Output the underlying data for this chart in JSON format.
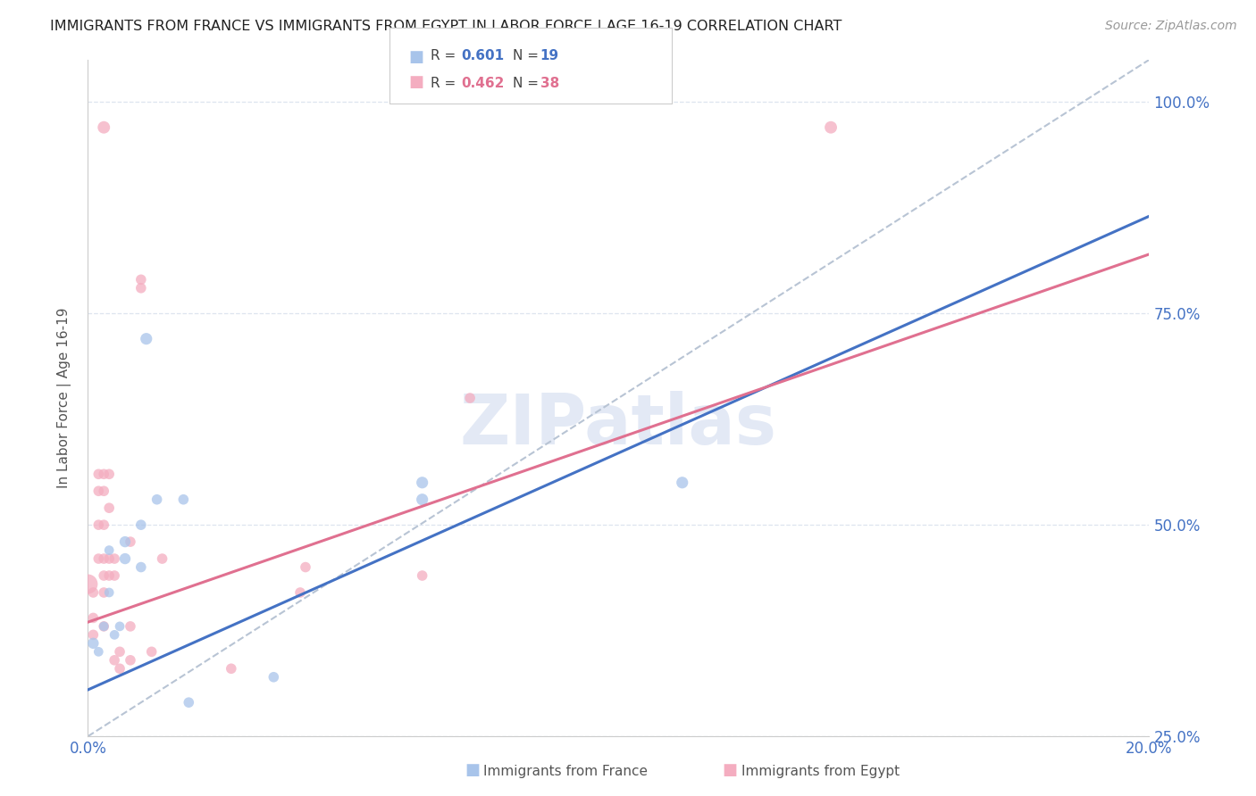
{
  "title": "IMMIGRANTS FROM FRANCE VS IMMIGRANTS FROM EGYPT IN LABOR FORCE | AGE 16-19 CORRELATION CHART",
  "source": "Source: ZipAtlas.com",
  "ylabel": "In Labor Force | Age 16-19",
  "watermark": "ZIPatlas",
  "xlim": [
    0.0,
    0.2
  ],
  "ylim": [
    0.25,
    1.05
  ],
  "yticks": [
    0.25,
    0.5,
    0.75,
    1.0
  ],
  "ytick_labels": [
    "25.0%",
    "50.0%",
    "75.0%",
    "100.0%"
  ],
  "xticks": [
    0.0,
    0.05,
    0.1,
    0.15,
    0.2
  ],
  "xtick_labels": [
    "0.0%",
    "",
    "",
    "",
    "20.0%"
  ],
  "france_color": "#a8c4ea",
  "egypt_color": "#f4adc0",
  "france_line_color": "#4472c4",
  "egypt_line_color": "#e07090",
  "diagonal_color": "#b8c4d4",
  "grid_color": "#dde4ef",
  "title_color": "#222222",
  "tick_color": "#4472c4",
  "background_color": "#ffffff",
  "france_line": [
    0.0,
    0.305,
    0.2,
    0.865
  ],
  "egypt_line": [
    0.0,
    0.385,
    0.2,
    0.82
  ],
  "france_scatter": [
    [
      0.001,
      0.36
    ],
    [
      0.002,
      0.35
    ],
    [
      0.003,
      0.38
    ],
    [
      0.004,
      0.42
    ],
    [
      0.004,
      0.47
    ],
    [
      0.005,
      0.37
    ],
    [
      0.006,
      0.38
    ],
    [
      0.007,
      0.46
    ],
    [
      0.007,
      0.48
    ],
    [
      0.01,
      0.45
    ],
    [
      0.01,
      0.5
    ],
    [
      0.011,
      0.72
    ],
    [
      0.013,
      0.53
    ],
    [
      0.018,
      0.53
    ],
    [
      0.019,
      0.29
    ],
    [
      0.035,
      0.32
    ],
    [
      0.063,
      0.55
    ],
    [
      0.063,
      0.53
    ],
    [
      0.112,
      0.55
    ]
  ],
  "egypt_scatter": [
    [
      0.0,
      0.43
    ],
    [
      0.001,
      0.42
    ],
    [
      0.001,
      0.39
    ],
    [
      0.001,
      0.37
    ],
    [
      0.002,
      0.56
    ],
    [
      0.002,
      0.54
    ],
    [
      0.002,
      0.5
    ],
    [
      0.002,
      0.46
    ],
    [
      0.003,
      0.56
    ],
    [
      0.003,
      0.54
    ],
    [
      0.003,
      0.5
    ],
    [
      0.003,
      0.46
    ],
    [
      0.003,
      0.44
    ],
    [
      0.003,
      0.42
    ],
    [
      0.003,
      0.38
    ],
    [
      0.004,
      0.56
    ],
    [
      0.004,
      0.52
    ],
    [
      0.004,
      0.46
    ],
    [
      0.004,
      0.44
    ],
    [
      0.005,
      0.46
    ],
    [
      0.005,
      0.44
    ],
    [
      0.005,
      0.34
    ],
    [
      0.006,
      0.35
    ],
    [
      0.006,
      0.33
    ],
    [
      0.008,
      0.48
    ],
    [
      0.008,
      0.38
    ],
    [
      0.008,
      0.34
    ],
    [
      0.01,
      0.79
    ],
    [
      0.01,
      0.78
    ],
    [
      0.012,
      0.35
    ],
    [
      0.014,
      0.46
    ],
    [
      0.027,
      0.33
    ],
    [
      0.04,
      0.42
    ],
    [
      0.041,
      0.45
    ],
    [
      0.063,
      0.44
    ],
    [
      0.072,
      0.65
    ],
    [
      0.14,
      0.97
    ],
    [
      0.003,
      0.97
    ]
  ],
  "france_bubble_sizes": [
    80,
    60,
    60,
    60,
    60,
    60,
    60,
    80,
    80,
    70,
    70,
    90,
    70,
    70,
    70,
    70,
    90,
    90,
    90
  ],
  "egypt_bubble_sizes": [
    250,
    70,
    70,
    70,
    70,
    70,
    70,
    70,
    70,
    70,
    70,
    70,
    70,
    70,
    70,
    70,
    70,
    70,
    70,
    70,
    70,
    70,
    70,
    70,
    70,
    70,
    70,
    70,
    70,
    70,
    70,
    70,
    70,
    70,
    70,
    70,
    100,
    100
  ]
}
